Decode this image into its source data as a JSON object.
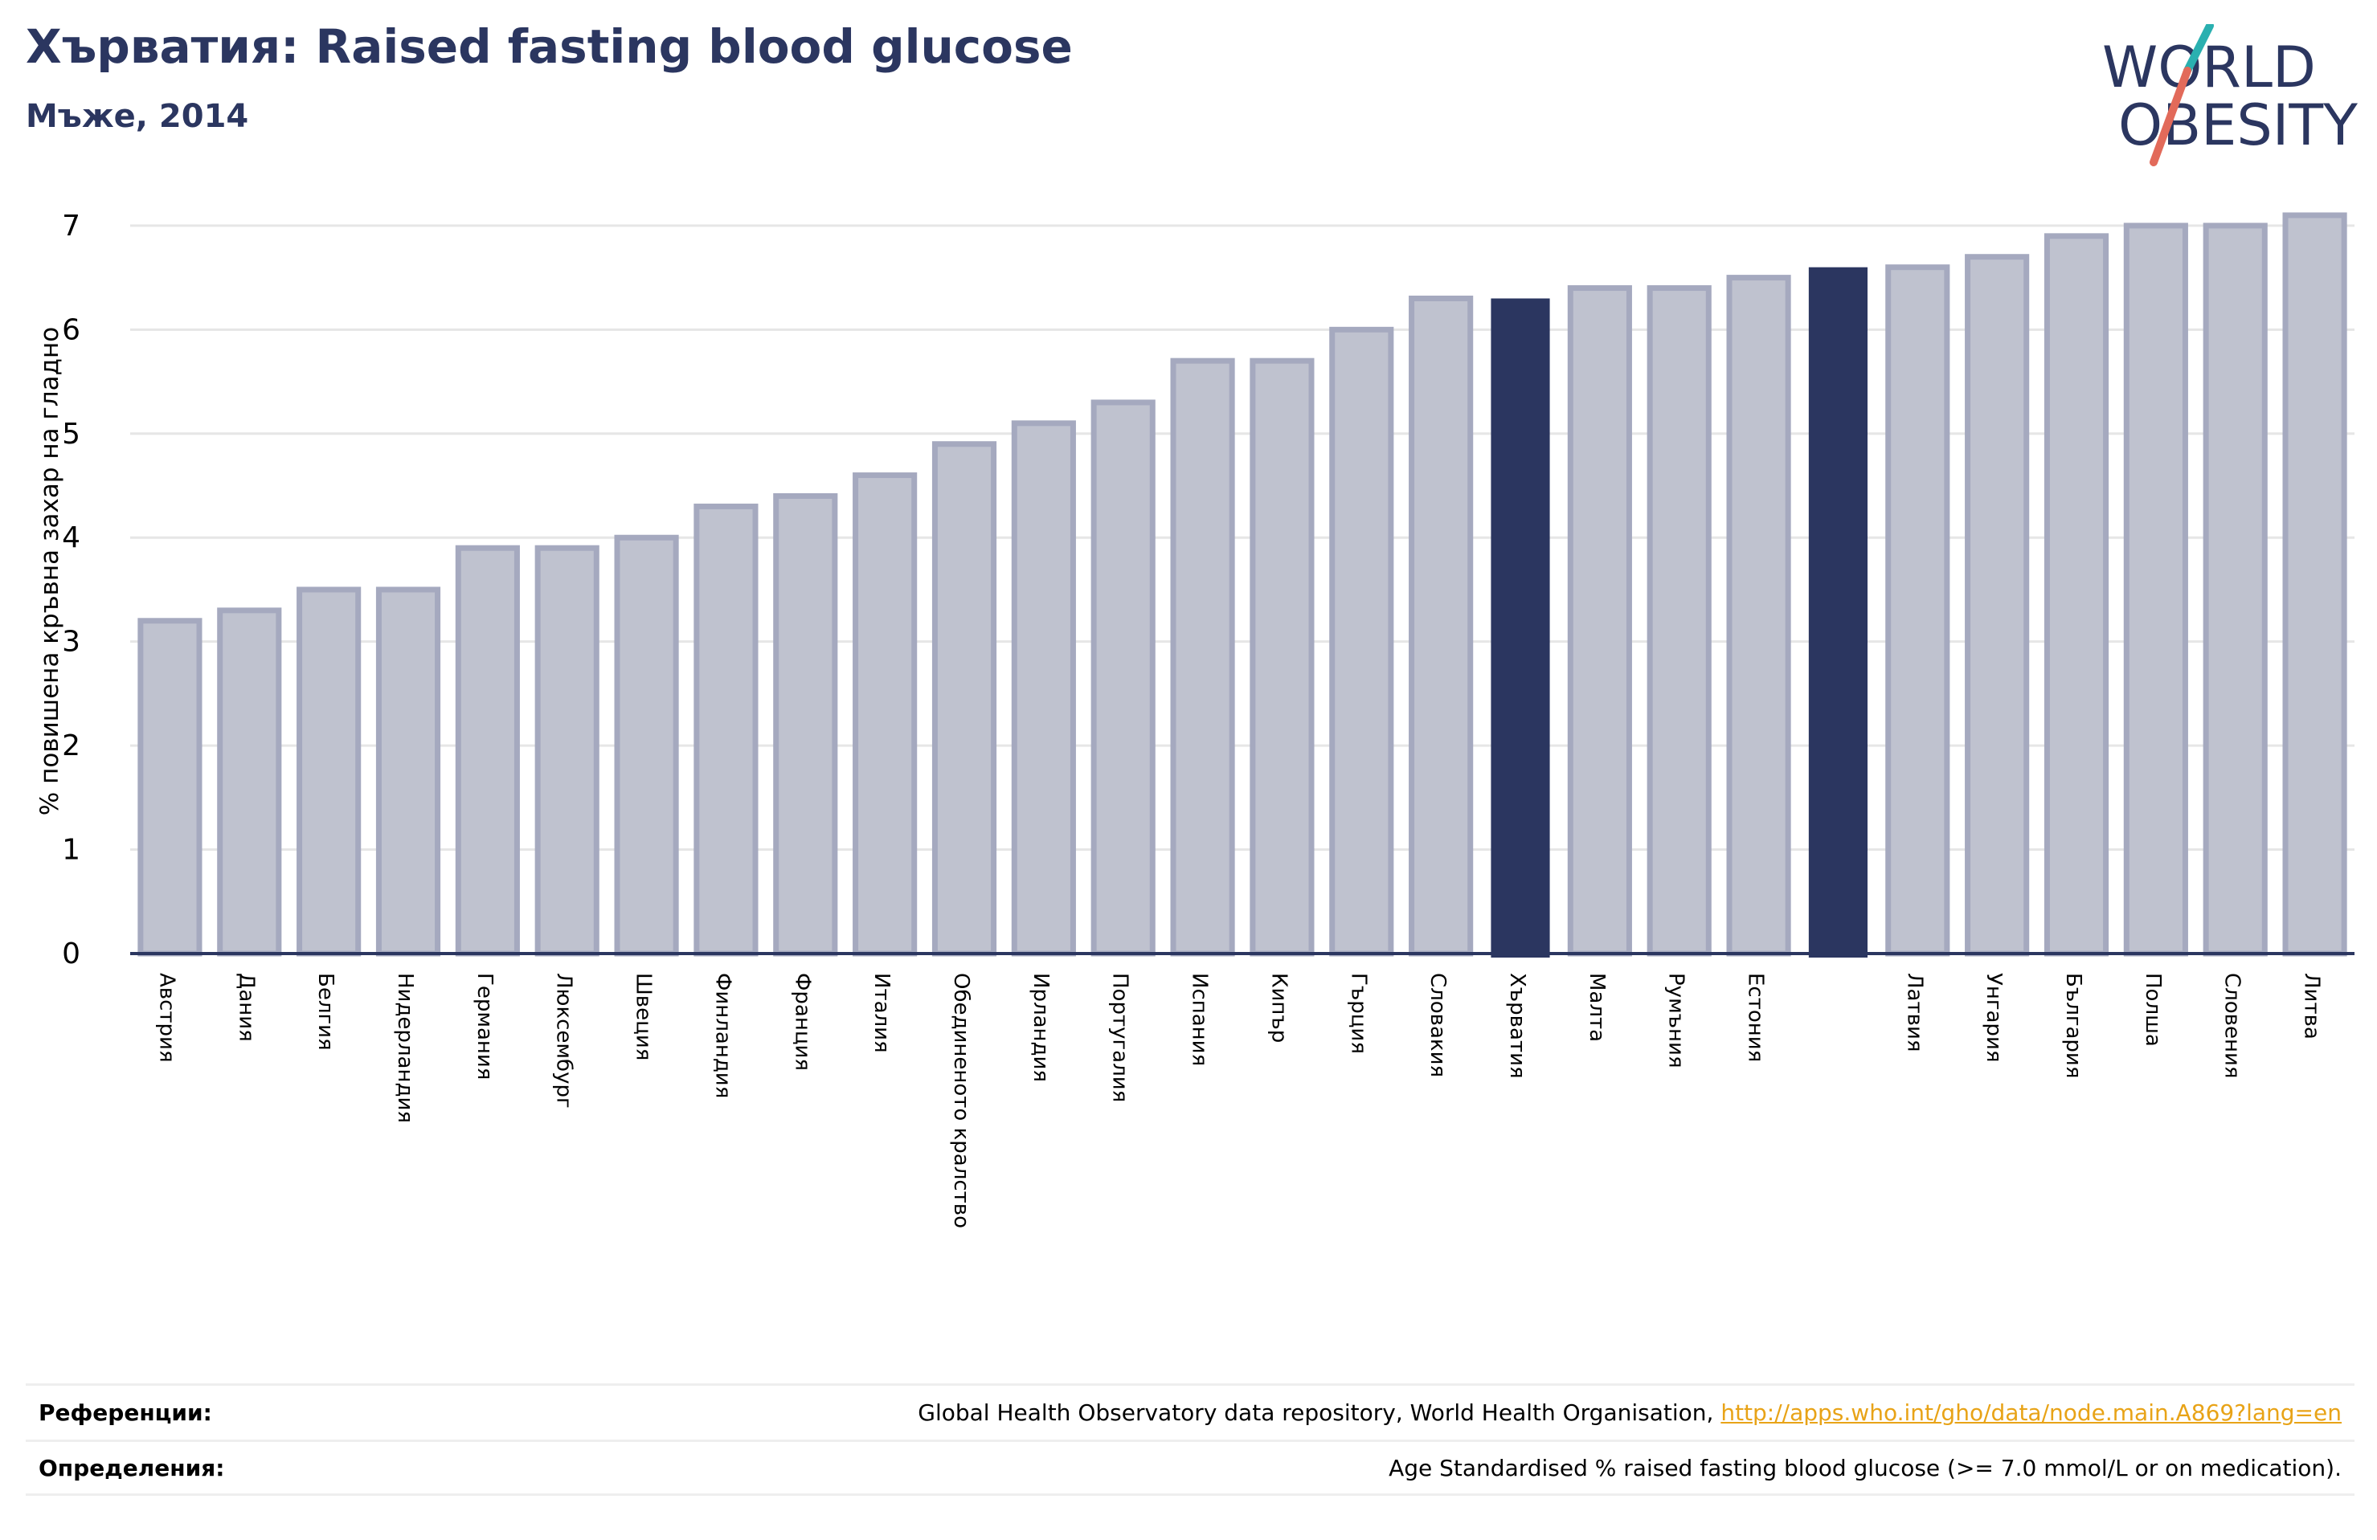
{
  "header": {
    "title": "Хърватия: Raised fasting blood glucose",
    "subtitle": "Мъже, 2014"
  },
  "logo": {
    "line1": "WORLD",
    "line2": "OBESITY",
    "colors": {
      "text": "#2b3660",
      "slash_top": "#2ab0b0",
      "slash_bottom": "#e26a5a"
    }
  },
  "chart_data": {
    "type": "bar",
    "ylabel": "% повишена кръвна захар на гладно",
    "xlabel": "",
    "ylim": [
      0,
      7.2
    ],
    "yticks": [
      0,
      1,
      2,
      3,
      4,
      5,
      6,
      7
    ],
    "grid": true,
    "categories": [
      "Австрия",
      "Дания",
      "Белгия",
      "Нидерландия",
      "Германия",
      "Люксембург",
      "Швеция",
      "Финландия",
      "Франция",
      "Италия",
      "Обединеното кралство",
      "Ирландия",
      "Португалия",
      "Испания",
      "Кипър",
      "Гърция",
      "Словакия",
      "Хърватия",
      "Малта",
      "Румъния",
      "Естония",
      "",
      "Латвия",
      "Унгария",
      "България",
      "Полша",
      "Словения",
      "Литва"
    ],
    "values": [
      3.2,
      3.3,
      3.5,
      3.5,
      3.9,
      3.9,
      4.0,
      4.3,
      4.4,
      4.6,
      4.9,
      5.1,
      5.3,
      5.7,
      5.7,
      6.0,
      6.3,
      6.3,
      6.4,
      6.4,
      6.5,
      6.6,
      6.6,
      6.7,
      6.9,
      7.0,
      7.0,
      7.1
    ],
    "highlighted": [
      17,
      21
    ],
    "colors": {
      "bar_fill": "#bfc2cf",
      "bar_stroke": "#a5a9bf",
      "highlight": "#2b3660",
      "grid": "#e6e6e6",
      "axis": "#2b3660"
    }
  },
  "references": {
    "label": "Референции:",
    "text": "Global Health Observatory data repository, World Health Organisation, ",
    "link": "http://apps.who.int/gho/data/node.main.A869?lang=en"
  },
  "definitions": {
    "label": "Определения:",
    "text": "Age Standardised % raised fasting blood glucose (>= 7.0 mmol/L or on medication)."
  }
}
